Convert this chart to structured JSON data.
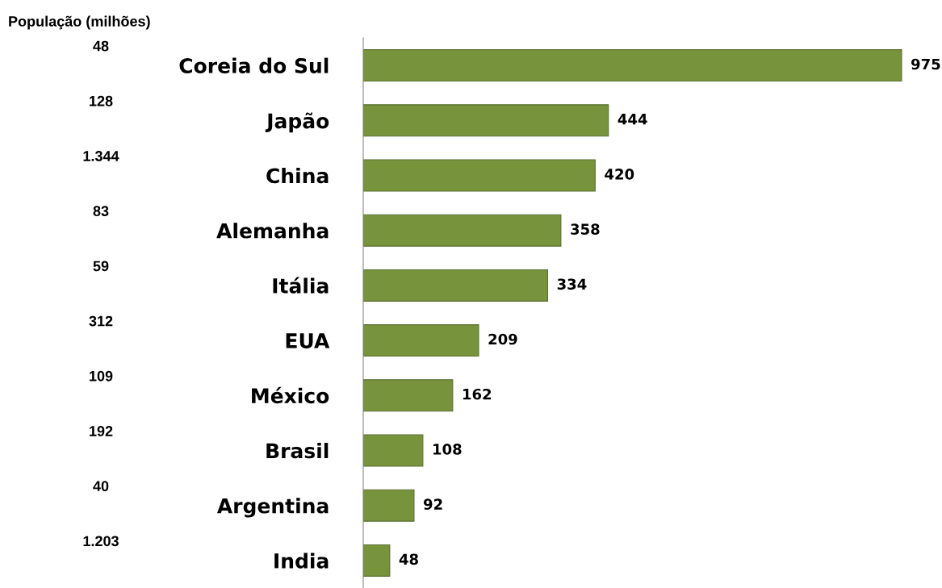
{
  "chart_data": {
    "type": "bar",
    "orientation": "horizontal",
    "categories": [
      "Coreia do Sul",
      "Japão",
      "China",
      "Alemanha",
      "Itália",
      "EUA",
      "México",
      "Brasil",
      "Argentina",
      "India"
    ],
    "values": [
      975,
      444,
      420,
      358,
      334,
      209,
      162,
      108,
      92,
      48
    ],
    "color": "#77933c",
    "data_labels": true,
    "grid": false,
    "legend": false,
    "annotations": [
      "População (milhões)",
      "48",
      "128",
      "1.344",
      "83",
      "59",
      "312",
      "109",
      "192",
      "40",
      "1.203"
    ]
  }
}
